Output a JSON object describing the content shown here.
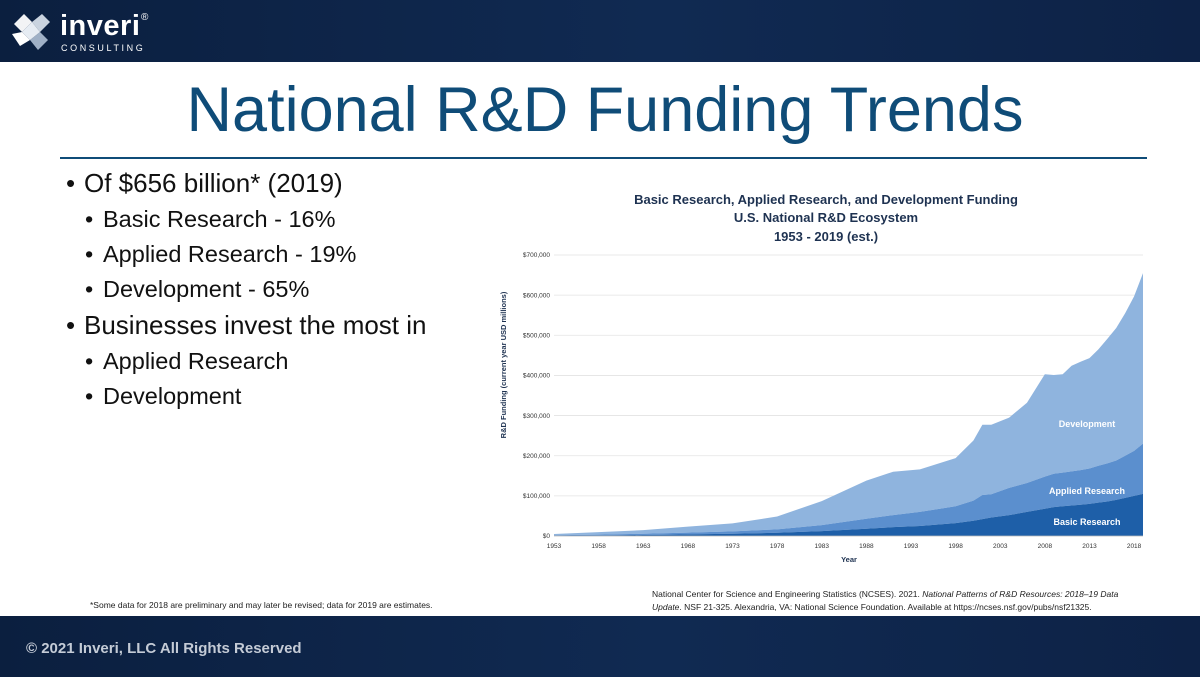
{
  "brand": {
    "name": "inveri",
    "tagline": "CONSULTING",
    "registered": "®"
  },
  "slide": {
    "title": "National R&D Funding Trends",
    "bullets": [
      {
        "text": "Of $656 billion* (2019)",
        "children": [
          "Basic Research - 16%",
          "Applied Research - 19%",
          "Development - 65%"
        ]
      },
      {
        "text": "Businesses invest the most in",
        "children": [
          "Applied Research",
          "Development"
        ]
      }
    ],
    "footnote": "*Some data for 2018 are preliminary and may later be revised; data for 2019 are estimates.",
    "source_prefix": "National Center for Science and Engineering Statistics (NCSES). 2021. ",
    "source_title": "National Patterns of R&D Resources: 2018–19 Data Update",
    "source_suffix": ". NSF 21-325. Alexandria, VA: National Science Foundation. Available at https://ncses.nsf.gov/pubs/nsf21325."
  },
  "footer": {
    "copyright": "© 2021 Inveri, LLC All Rights Reserved"
  },
  "colors": {
    "bar": "#0d2246",
    "title": "#0f4c78",
    "basic": "#1e5fa8",
    "applied": "#5b8fce",
    "development": "#8fb4de"
  },
  "chart_data": {
    "type": "area",
    "stacked": true,
    "title_lines": [
      "Basic Research, Applied Research, and Development Funding",
      "U.S. National R&D Ecosystem",
      "1953 - 2019 (est.)"
    ],
    "xlabel": "Year",
    "ylabel": "R&D Funding (current year USD millions)",
    "xlim": [
      1953,
      2019
    ],
    "ylim": [
      0,
      700000
    ],
    "x_ticks": [
      1953,
      1958,
      1963,
      1968,
      1973,
      1978,
      1983,
      1988,
      1993,
      1998,
      2003,
      2008,
      2013,
      2018
    ],
    "y_ticks": [
      0,
      100000,
      200000,
      300000,
      400000,
      500000,
      600000,
      700000
    ],
    "y_tick_labels": [
      "$0",
      "$100,000",
      "$200,000",
      "$300,000",
      "$400,000",
      "$500,000",
      "$600,000",
      "$700,000"
    ],
    "grid": true,
    "years": [
      1953,
      1958,
      1963,
      1968,
      1973,
      1978,
      1983,
      1988,
      1991,
      1994,
      1998,
      2000,
      2001,
      2002,
      2004,
      2006,
      2008,
      2009,
      2010,
      2011,
      2012,
      2013,
      2014,
      2015,
      2016,
      2017,
      2018,
      2019
    ],
    "series": [
      {
        "name": "Basic Research",
        "values": [
          1000,
          1500,
          2500,
          4000,
          5500,
          8000,
          12000,
          18000,
          22000,
          25000,
          32000,
          38000,
          42000,
          46000,
          52000,
          60000,
          68000,
          72000,
          74000,
          76000,
          78000,
          80000,
          83000,
          86000,
          90000,
          95000,
          100000,
          105000
        ]
      },
      {
        "name": "Applied Research",
        "values": [
          1000,
          2000,
          3000,
          4500,
          6000,
          8500,
          15000,
          25000,
          30000,
          35000,
          42000,
          50000,
          60000,
          58000,
          68000,
          72000,
          80000,
          83000,
          84000,
          85000,
          86000,
          88000,
          92000,
          95000,
          98000,
          105000,
          112000,
          125000
        ]
      },
      {
        "name": "Development",
        "values": [
          3000,
          6000,
          9000,
          15000,
          20000,
          32000,
          60000,
          95000,
          108000,
          106000,
          120000,
          150000,
          175000,
          173000,
          175000,
          200000,
          255000,
          246000,
          245000,
          263000,
          270000,
          275000,
          290000,
          310000,
          330000,
          355000,
          385000,
          425000
        ]
      }
    ]
  }
}
